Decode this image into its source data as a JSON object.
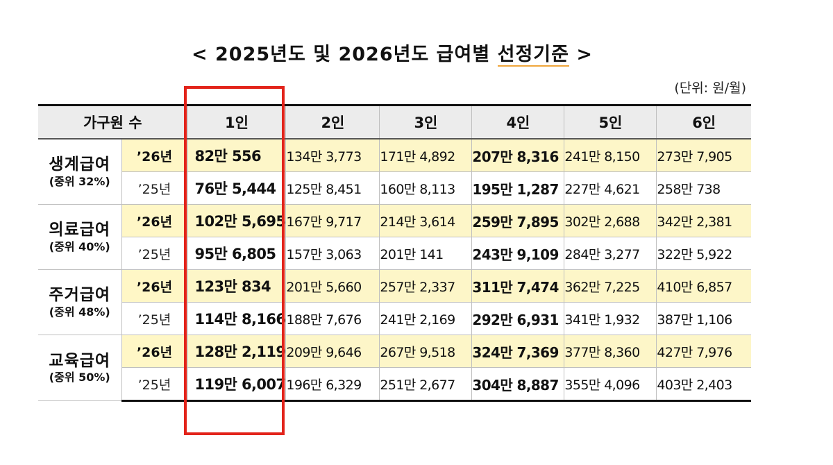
{
  "title": {
    "prefix": "< 2025년도 및 2026년도 급여별 ",
    "underlined": "선정기준",
    "suffix": " >"
  },
  "unit": "(단위: 원/월)",
  "headers": [
    "가구원 수",
    "1인",
    "2인",
    "3인",
    "4인",
    "5인",
    "6인"
  ],
  "groups": [
    {
      "name": "생계급여",
      "sub": "(중위 32%)",
      "rows": [
        {
          "year": "’26년",
          "values": [
            "82만 556",
            "134만 3,773",
            "171만 4,892",
            "207만 8,316",
            "241만 8,150",
            "273만 7,905"
          ]
        },
        {
          "year": "’25년",
          "values": [
            "76만 5,444",
            "125만 8,451",
            "160만 8,113",
            "195만 1,287",
            "227만 4,621",
            "258만 738"
          ]
        }
      ]
    },
    {
      "name": "의료급여",
      "sub": "(중위 40%)",
      "rows": [
        {
          "year": "’26년",
          "values": [
            "102만 5,695",
            "167만 9,717",
            "214만 3,614",
            "259만 7,895",
            "302만 2,688",
            "342만 2,381"
          ]
        },
        {
          "year": "’25년",
          "values": [
            "95만 6,805",
            "157만 3,063",
            "201만 141",
            "243만 9,109",
            "284만 3,277",
            "322만 5,922"
          ]
        }
      ]
    },
    {
      "name": "주거급여",
      "sub": "(중위 48%)",
      "rows": [
        {
          "year": "’26년",
          "values": [
            "123만 834",
            "201만 5,660",
            "257만 2,337",
            "311만 7,474",
            "362만 7,225",
            "410만 6,857"
          ]
        },
        {
          "year": "’25년",
          "values": [
            "114만 8,166",
            "188만 7,676",
            "241만 2,169",
            "292만 6,931",
            "341만 1,932",
            "387만 1,106"
          ]
        }
      ]
    },
    {
      "name": "교육급여",
      "sub": "(중위 50%)",
      "rows": [
        {
          "year": "’26년",
          "values": [
            "128만 2,119",
            "209만 9,646",
            "267만 9,518",
            "324만 7,369",
            "377만 8,360",
            "427만 7,976"
          ]
        },
        {
          "year": "’25년",
          "values": [
            "119만 6,007",
            "196만 6,329",
            "251만 2,677",
            "304만 8,887",
            "355만 4,096",
            "403만 2,403"
          ]
        }
      ]
    }
  ]
}
